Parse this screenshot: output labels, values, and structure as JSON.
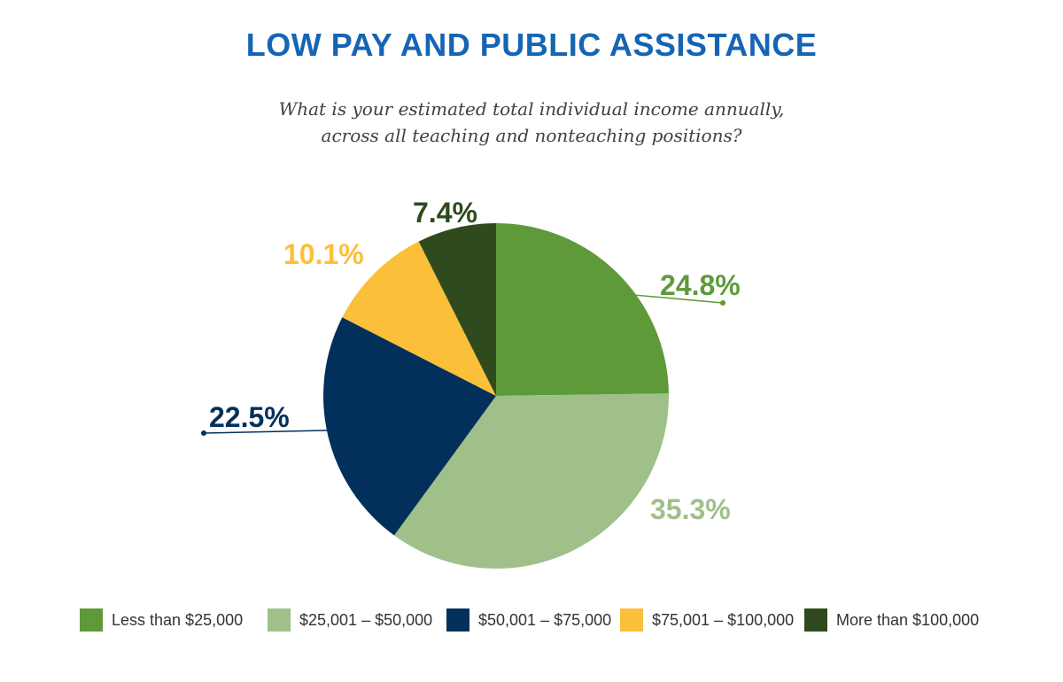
{
  "chart_data": {
    "type": "pie",
    "title": "LOW PAY AND PUBLIC ASSISTANCE",
    "subtitle_lines": [
      "What is your estimated total individual income annually,",
      "across all teaching and nonteaching positions?"
    ],
    "slices": [
      {
        "name": "Less than $25,000",
        "value": 24.8,
        "label": "24.8%",
        "color": "#5e9a3a"
      },
      {
        "name": "$25,001 – $50,000",
        "value": 35.3,
        "label": "35.3%",
        "color": "#a0c08a"
      },
      {
        "name": "$50,001 – $75,000",
        "value": 22.5,
        "label": "22.5%",
        "color": "#03305a"
      },
      {
        "name": "$75,001 – $100,000",
        "value": 10.1,
        "label": "10.1%",
        "color": "#fcbf3a"
      },
      {
        "name": "More than $100,000",
        "value": 7.4,
        "label": "7.4%",
        "color": "#2f4a1c"
      }
    ],
    "start_angle": "12 o'clock",
    "direction": "clockwise",
    "legend_position": "bottom"
  }
}
